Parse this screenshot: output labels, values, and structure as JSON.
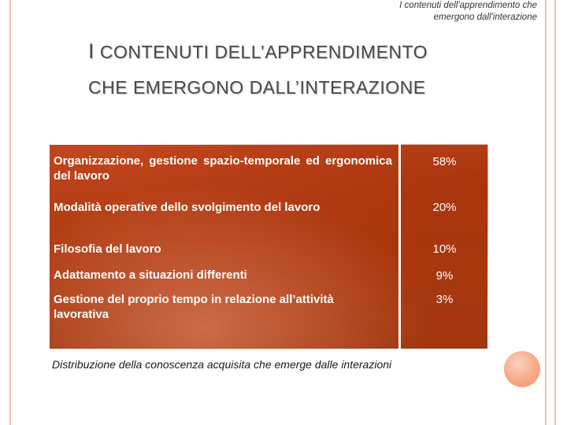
{
  "header_note": {
    "line1": "I contenuti dell'apprendimento che",
    "line2": "emergono dall'interazione"
  },
  "title": {
    "line1_initial": "I",
    "line1_rest": " CONTENUTI DELL’APPRENDIMENTO",
    "line2": "CHE EMERGONO DALL’INTERAZIONE"
  },
  "table": {
    "rows": [
      {
        "label": "Organizzazione, gestione spazio-temporale ed ergonomica del lavoro",
        "value": "58%"
      },
      {
        "label": "Modalità operative dello svolgimento del lavoro",
        "value": "20%"
      },
      {
        "label": "Filosofia del lavoro",
        "value": "10%"
      },
      {
        "label": "Adattamento a situazioni differenti",
        "value": "9%"
      },
      {
        "label": "Gestione del proprio tempo in relazione all’attività lavorativa",
        "value": "3%"
      }
    ]
  },
  "caption": "Distribuzione della conoscenza acquisita che emerge dalle interazioni",
  "colors": {
    "table_bg": "#b03c12",
    "accent": "#f6a886",
    "rule": "#f1c3b3"
  }
}
